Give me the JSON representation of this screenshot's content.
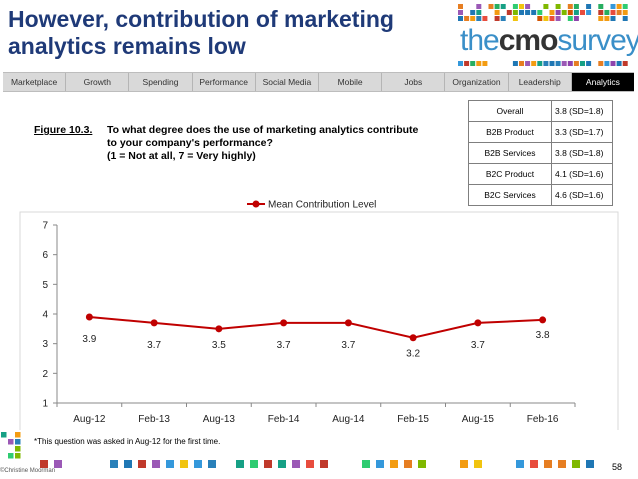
{
  "header": {
    "title": "However, contribution of marketing analytics remains low",
    "logo": {
      "the": "the",
      "cmo": "cmo",
      "survey": "survey"
    }
  },
  "nav": {
    "items": [
      "Marketplace",
      "Growth",
      "Spending",
      "Performance",
      "Social Media",
      "Mobile",
      "Jobs",
      "Organization",
      "Leadership",
      "Analytics"
    ],
    "active": "Analytics"
  },
  "figure": {
    "label": "Figure 10.3.",
    "question": "To what degree does the use of marketing analytics contribute to your company's performance?",
    "scale": "(1 = Not at all, 7 = Very highly)"
  },
  "summary_table": [
    {
      "label": "Overall",
      "value": "3.8 (SD=1.8)"
    },
    {
      "label": "B2B Product",
      "value": "3.3 (SD=1.7)"
    },
    {
      "label": "B2B Services",
      "value": "3.8 (SD=1.8)"
    },
    {
      "label": "B2C Product",
      "value": "4.1 (SD=1.6)"
    },
    {
      "label": "B2C Services",
      "value": "4.6 (SD=1.6)"
    }
  ],
  "chart_data": {
    "type": "line",
    "title": "",
    "xlabel": "",
    "ylabel": "",
    "ylim": [
      1,
      7
    ],
    "yticks": [
      1,
      2,
      3,
      4,
      5,
      6,
      7
    ],
    "grid": false,
    "legend": "top-center",
    "categories": [
      "Aug-12",
      "Feb-13",
      "Aug-13",
      "Feb-14",
      "Aug-14",
      "Feb-15",
      "Aug-15",
      "Feb-16"
    ],
    "series": [
      {
        "name": "Mean Contribution Level",
        "values": [
          3.9,
          3.7,
          3.5,
          3.7,
          3.7,
          3.2,
          3.7,
          3.8
        ],
        "color": "#c00000"
      }
    ],
    "data_labels": [
      "3.9",
      "3.7",
      "3.5",
      "3.7",
      "3.7",
      "3.2",
      "3.7",
      "3.8"
    ]
  },
  "footnote": "*This question was asked in Aug-12 for the first time.",
  "page_number": "58",
  "credit": "©Christine Moorman",
  "colors": {
    "title": "#1f3a78",
    "series": "#c00000",
    "nav_bg": "#d9d9d9",
    "nav_active_bg": "#000000"
  }
}
